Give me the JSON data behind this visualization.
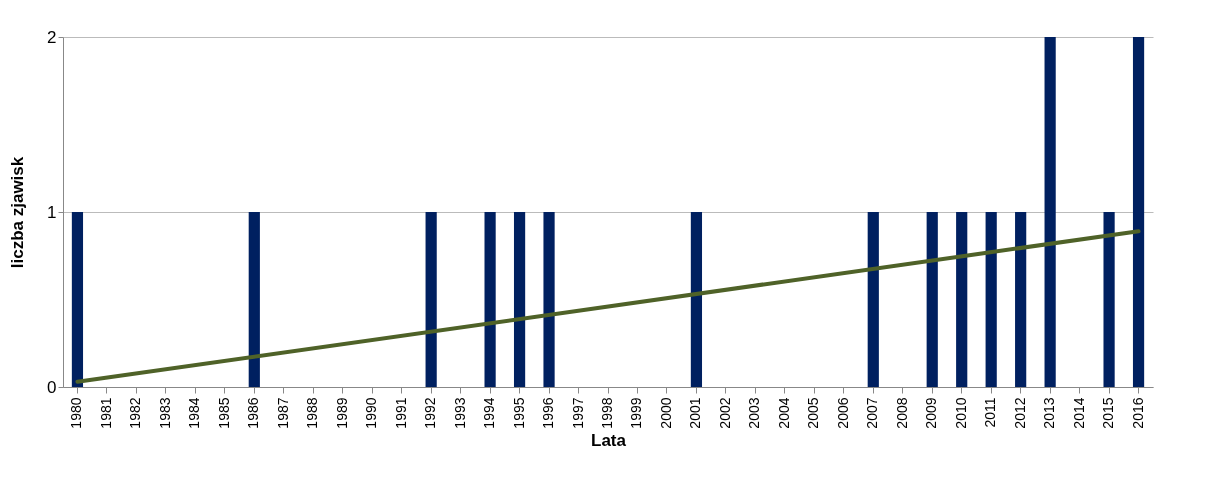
{
  "chart_data": {
    "type": "bar",
    "xlabel": "Lata",
    "ylabel": "liczba zjawisk",
    "categories": [
      "1980",
      "1981",
      "1982",
      "1983",
      "1984",
      "1985",
      "1986",
      "1987",
      "1988",
      "1989",
      "1990",
      "1991",
      "1992",
      "1993",
      "1994",
      "1995",
      "1996",
      "1997",
      "1998",
      "1999",
      "2000",
      "2001",
      "2002",
      "2003",
      "2004",
      "2005",
      "2006",
      "2007",
      "2008",
      "2009",
      "2010",
      "2011",
      "2012",
      "2013",
      "2014",
      "2015",
      "2016"
    ],
    "series": [
      {
        "color": "#002060",
        "values": [
          1,
          0,
          0,
          0,
          0,
          0,
          1,
          0,
          0,
          0,
          0,
          0,
          1,
          0,
          1,
          1,
          1,
          0,
          0,
          0,
          0,
          1,
          0,
          0,
          0,
          0,
          0,
          1,
          0,
          1,
          1,
          1,
          1,
          2,
          0,
          1,
          2
        ]
      },
      {
        "type": "line",
        "color": "#4f6228",
        "values": [
          0.03,
          null,
          null,
          null,
          null,
          null,
          null,
          null,
          null,
          null,
          null,
          null,
          null,
          null,
          null,
          null,
          null,
          null,
          null,
          null,
          null,
          null,
          null,
          null,
          null,
          null,
          null,
          null,
          null,
          null,
          null,
          null,
          null,
          null,
          null,
          null,
          0.89
        ]
      }
    ],
    "ylim": [
      0,
      2
    ],
    "yticks": [
      0,
      1,
      2
    ],
    "grid": "y"
  }
}
